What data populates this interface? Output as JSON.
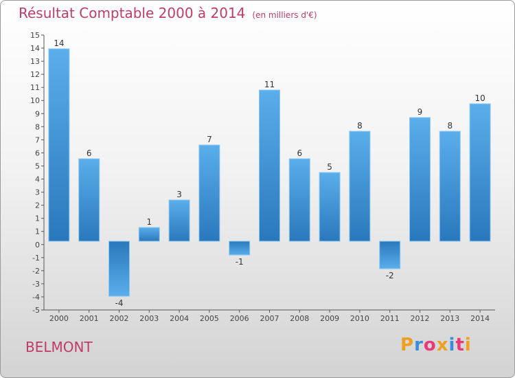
{
  "header": {
    "title": "Résultat Comptable 2000 à 2014",
    "subtitle": "(en milliers d'€)"
  },
  "commune_name": "BELMONT",
  "logo": {
    "letters": [
      "P",
      "r",
      "o",
      "x",
      "i",
      "t",
      "i"
    ],
    "colors": [
      "#f0a020",
      "#3a8ed8",
      "#e83a7a",
      "#f0a020",
      "#3a8ed8",
      "#e83a7a",
      "#f0a020"
    ]
  },
  "colors": {
    "title": "#c03a6a",
    "bar_light": "#5aaeea",
    "bar_dark": "#2a78bc",
    "axis": "#555555"
  },
  "chart_data": {
    "type": "bar",
    "title": "Résultat Comptable 2000 à 2014",
    "unit": "(en milliers d'€)",
    "xlabel": "",
    "ylabel": "",
    "ylim": [
      -5,
      15
    ],
    "yticks": [
      "-5",
      "-4",
      "-3",
      "-2",
      "-1",
      "0",
      "1",
      "1",
      "2",
      "3",
      "4",
      "5",
      "6",
      "7",
      "8",
      "9",
      "10",
      "11",
      "12",
      "13",
      "14",
      "15"
    ],
    "categories": [
      "2000",
      "2001",
      "2002",
      "2003",
      "2004",
      "2005",
      "2006",
      "2007",
      "2008",
      "2009",
      "2010",
      "2011",
      "2012",
      "2013",
      "2014"
    ],
    "values": [
      14,
      6,
      -4,
      1,
      3,
      7,
      -1,
      11,
      6,
      5,
      8,
      -2,
      9,
      8,
      10
    ],
    "data_labels": [
      "14",
      "6",
      "-4",
      "1",
      "3",
      "7",
      "-1",
      "11",
      "6",
      "5",
      "8",
      "-2",
      "9",
      "8",
      "10"
    ],
    "grid": false,
    "legend": "none"
  }
}
